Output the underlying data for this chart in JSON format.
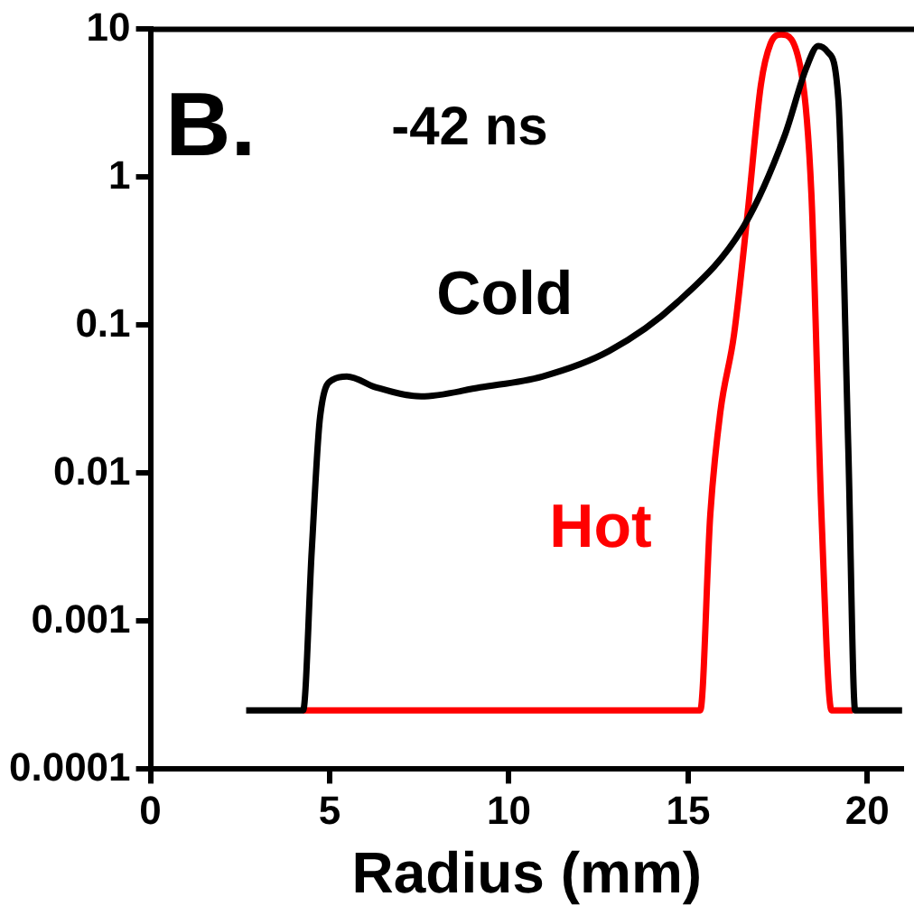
{
  "chart_data": {
    "type": "line",
    "xlabel": "Radius (mm)",
    "annotations": [
      "B.",
      "-42 ns"
    ],
    "series": [
      {
        "name": "Cold",
        "color": "#000000",
        "x": [
          2.67,
          4.26,
          4.5,
          4.73,
          5.1,
          5.48,
          6.3,
          7.55,
          9.2,
          10.93,
          12.8,
          14.69,
          16.56,
          17.69,
          18.3,
          18.63,
          18.9,
          19.19,
          19.47,
          19.66,
          20.97
        ],
        "values": [
          0.00025,
          0.00025,
          0.003,
          0.0237,
          0.043,
          0.045,
          0.038,
          0.033,
          0.038,
          0.045,
          0.067,
          0.142,
          0.47,
          1.9,
          5.5,
          7.7,
          7,
          3.4,
          0.0145,
          0.00025,
          0.00025
        ]
      },
      {
        "name": "Hot",
        "color": "#ff0000",
        "x": [
          4.26,
          15.34,
          15.62,
          15.9,
          16.28,
          16.66,
          17.03,
          17.3,
          17.6,
          18.16,
          18.44,
          18.72,
          19.0,
          19.6
        ],
        "values": [
          0.00025,
          0.00025,
          0.0053,
          0.026,
          0.086,
          0.57,
          4.2,
          8,
          9.2,
          5.1,
          0.77,
          0.0053,
          0.00025,
          0.00025
        ]
      }
    ],
    "xlim": [
      0,
      21
    ],
    "xticks": [
      0,
      5,
      10,
      15,
      20
    ],
    "ylim": [
      0.0001,
      10
    ],
    "yticks": [
      {
        "value": 0.0001,
        "label": "0.0001"
      },
      {
        "value": 0.001,
        "label": "0.001"
      },
      {
        "value": 0.01,
        "label": "0.01"
      },
      {
        "value": 0.1,
        "label": "0.1"
      },
      {
        "value": 1,
        "label": "1"
      },
      {
        "value": 10,
        "label": "10"
      }
    ],
    "log": true,
    "grid": false,
    "legend": false,
    "marker": "none",
    "line_style": "solid"
  }
}
